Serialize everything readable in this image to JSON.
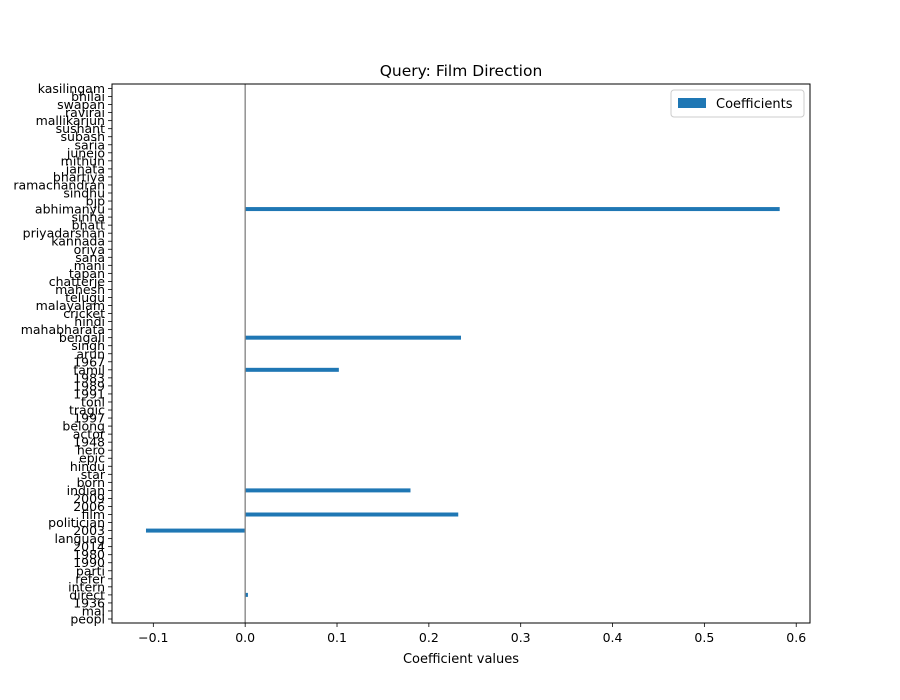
{
  "chart_data": {
    "type": "bar",
    "orientation": "horizontal",
    "title": "Query: Film Direction",
    "xlabel": "Coefficient values",
    "ylabel": "",
    "xlim": [
      -0.145,
      0.615
    ],
    "xticks": [
      -0.1,
      0.0,
      0.1,
      0.2,
      0.3,
      0.4,
      0.5,
      0.6
    ],
    "xtick_labels": [
      "−0.1",
      "0.0",
      "0.1",
      "0.2",
      "0.3",
      "0.4",
      "0.5",
      "0.6"
    ],
    "zero_line": true,
    "grid": false,
    "legend": {
      "position": "top-right",
      "entries": [
        "Coefficients"
      ]
    },
    "categories": [
      "peopl",
      "mal",
      "1936",
      "direct",
      "intern",
      "refer",
      "parti",
      "1990",
      "1980",
      "2014",
      "languag",
      "2003",
      "politician",
      "film",
      "2006",
      "2009",
      "indian",
      "born",
      "star",
      "hindu",
      "epic",
      "hero",
      "1948",
      "actor",
      "belong",
      "1997",
      "tragic",
      "tonl",
      "1991",
      "1989",
      "1983",
      "tamil",
      "1967",
      "arun",
      "singh",
      "bengali",
      "mahabharata",
      "hindi",
      "cricket",
      "malayalam",
      "telugu",
      "mahesh",
      "chatterje",
      "tapan",
      "mani",
      "sana",
      "oriya",
      "kannada",
      "priyadarshan",
      "bhatt",
      "sinha",
      "abhimanyu",
      "bjp",
      "sindhu",
      "ramachandran",
      "bhartiya",
      "janata",
      "mithun",
      "junejo",
      "saria",
      "subash",
      "sushant",
      "mallikarjun",
      "ravirai",
      "swapan",
      "bhilai",
      "kasilingam"
    ],
    "values": [
      0,
      0,
      0,
      0.003,
      0,
      0,
      0,
      0,
      0,
      0,
      0,
      -0.108,
      0,
      0.232,
      0,
      0,
      0.18,
      0,
      0,
      0,
      0,
      0,
      0,
      0,
      0,
      0,
      0,
      0,
      0,
      0,
      0,
      0.102,
      0,
      0,
      0,
      0.235,
      0,
      0,
      0,
      0,
      0,
      0,
      0,
      0,
      0,
      0,
      0,
      0,
      0,
      0,
      0,
      0.582,
      0,
      0,
      0,
      0,
      0,
      0,
      0,
      0,
      0,
      0,
      0,
      0,
      0,
      0,
      0
    ],
    "bar_color": "#1f77b4",
    "zero_line_color": "#808080"
  }
}
